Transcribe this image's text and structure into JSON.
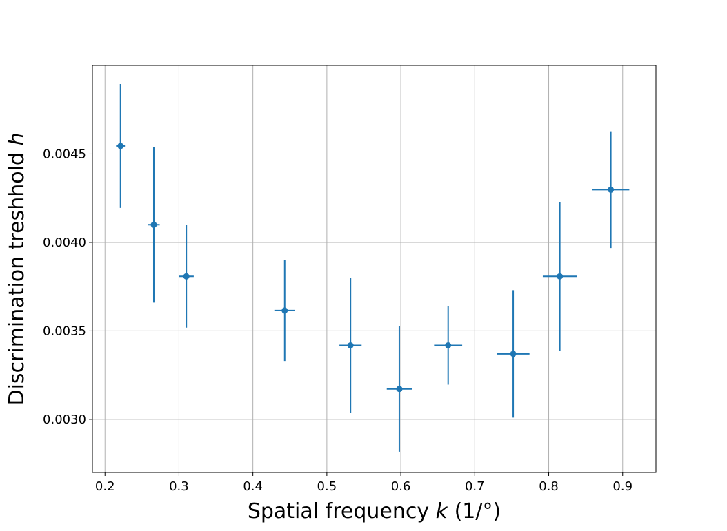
{
  "chart_data": {
    "type": "scatter",
    "title": "",
    "xlabel": {
      "prefix": "Spatial frequency ",
      "var": "k",
      "suffix": " (1/°)"
    },
    "ylabel": {
      "prefix": "Discrimination treshhold ",
      "var": "h"
    },
    "xlim": [
      0.183,
      0.945
    ],
    "ylim": [
      0.0027,
      0.005
    ],
    "x_ticks": [
      0.2,
      0.3,
      0.4,
      0.5,
      0.6,
      0.7,
      0.8,
      0.9
    ],
    "x_tick_labels": [
      "0.2",
      "0.3",
      "0.4",
      "0.5",
      "0.6",
      "0.7",
      "0.8",
      "0.9"
    ],
    "y_ticks": [
      0.003,
      0.0035,
      0.004,
      0.0045
    ],
    "y_tick_labels": [
      "0.0030",
      "0.0035",
      "0.0040",
      "0.0045"
    ],
    "grid": true,
    "color": "#1f77b4",
    "points": [
      {
        "x": 0.221,
        "y": 0.004545,
        "xerr": 0.006,
        "yerr": 0.00035
      },
      {
        "x": 0.266,
        "y": 0.0041,
        "xerr": 0.008,
        "yerr": 0.00044
      },
      {
        "x": 0.31,
        "y": 0.003808,
        "xerr": 0.01,
        "yerr": 0.00029
      },
      {
        "x": 0.443,
        "y": 0.003615,
        "xerr": 0.014,
        "yerr": 0.000285
      },
      {
        "x": 0.532,
        "y": 0.003418,
        "xerr": 0.015,
        "yerr": 0.00038
      },
      {
        "x": 0.598,
        "y": 0.003172,
        "xerr": 0.017,
        "yerr": 0.000355
      },
      {
        "x": 0.664,
        "y": 0.003418,
        "xerr": 0.019,
        "yerr": 0.000222
      },
      {
        "x": 0.752,
        "y": 0.00337,
        "xerr": 0.022,
        "yerr": 0.00036
      },
      {
        "x": 0.815,
        "y": 0.003808,
        "xerr": 0.023,
        "yerr": 0.00042
      },
      {
        "x": 0.884,
        "y": 0.004298,
        "xerr": 0.025,
        "yerr": 0.00033
      }
    ]
  }
}
